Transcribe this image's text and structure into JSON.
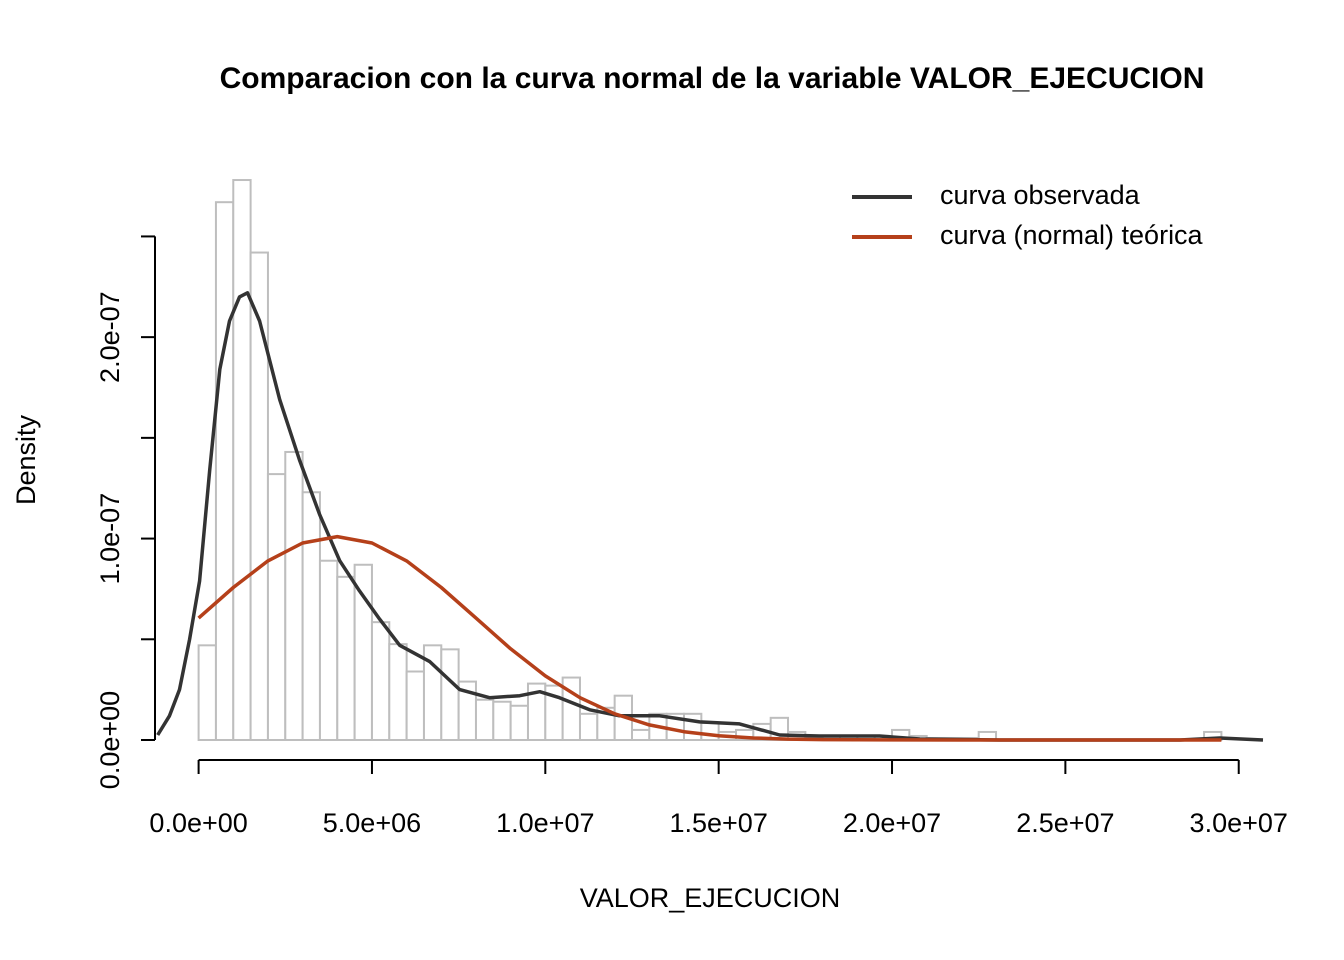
{
  "chart_data": {
    "type": "histogram",
    "title": "Comparacion con la curva normal de la variable VALOR_EJECUCION",
    "x_label": "VALOR_EJECUCION",
    "y_label": "Density",
    "bins": [
      0,
      500000.0,
      1000000.0,
      1500000.0,
      2000000.0,
      2500000.0,
      3000000.0,
      3500000.0,
      4000000.0,
      4500000.0,
      5000000.0,
      5500000.0,
      6000000.0,
      6500000.0,
      7000000.0,
      7500000.0,
      8000000.0,
      8500000.0,
      9000000.0,
      9500000.0,
      10000000.0,
      10500000.0,
      11000000.0,
      11500000.0,
      12000000.0,
      12500000.0,
      13000000.0,
      13500000.0,
      14000000.0,
      14500000.0,
      15000000.0,
      15500000.0,
      16000000.0,
      16500000.0,
      17000000.0,
      17500000.0,
      18000000.0,
      18500000.0,
      19000000.0,
      19500000.0,
      20000000.0,
      20500000.0,
      21000000.0,
      21500000.0,
      22000000.0,
      22500000.0,
      23000000.0,
      23500000.0,
      24000000.0,
      24500000.0,
      25000000.0,
      25500000.0,
      26000000.0,
      26500000.0,
      27000000.0,
      27500000.0,
      28000000.0,
      28500000.0,
      29000000.0,
      29500000.0,
      30000000.0
    ],
    "values": [
      4.7e-08,
      2.67e-07,
      2.78e-07,
      2.42e-07,
      1.32e-07,
      1.43e-07,
      1.23e-07,
      8.9e-08,
      8.1e-08,
      8.7e-08,
      5.85e-08,
      4.76e-08,
      3.4e-08,
      4.7e-08,
      4.5e-08,
      2.9e-08,
      2e-08,
      1.9e-08,
      1.7e-08,
      2.8e-08,
      2.7e-08,
      3.1e-08,
      1.3e-08,
      1.6e-08,
      2.2e-08,
      5e-09,
      1.3e-08,
      1.3e-08,
      1.3e-08,
      8.5e-09,
      4e-09,
      5e-09,
      8e-09,
      1.1e-08,
      4e-09,
      1e-09,
      2e-09,
      2e-09,
      5e-10,
      2e-09,
      5e-09,
      2e-09,
      1e-09,
      1e-09,
      1e-09,
      4e-09,
      0,
      0,
      0,
      0,
      0,
      0,
      0,
      0,
      0,
      0,
      0,
      0,
      4e-09,
      0
    ],
    "bar_color": "#bebebe",
    "lines": [
      {
        "name": "curva observada",
        "color": "#333333",
        "x": [
          -1180000.0,
          -840000.0,
          -550000.0,
          -260000.0,
          30000.0,
          320000.0,
          610000.0,
          890000.0,
          1180000.0,
          1410000.0,
          1760000.0,
          2340000.0,
          2910000.0,
          3490000.0,
          4070000.0,
          4640000.0,
          5220000.0,
          5800000.0,
          6660000.0,
          7530000.0,
          8390000.0,
          9260000.0,
          9840000.0,
          10410000.0,
          11280000.0,
          12140000.0,
          13300000.0,
          14450000.0,
          15600000.0,
          16760000.0,
          17900000.0,
          19640000.0,
          20800000.0,
          23100000.0,
          28300000.0,
          29450000.0,
          30700000.0
        ],
        "values": [
          2.5e-09,
          1.2e-08,
          2.5e-08,
          5e-08,
          7.9e-08,
          1.34e-07,
          1.84e-07,
          2.08e-07,
          2.2e-07,
          2.22e-07,
          2.08e-07,
          1.69e-07,
          1.39e-07,
          1.12e-07,
          8.9e-08,
          7.4e-08,
          6e-08,
          4.7e-08,
          3.9e-08,
          2.5e-08,
          2.1e-08,
          2.2e-08,
          2.4e-08,
          2.1e-08,
          1.5e-08,
          1.2e-08,
          1.2e-08,
          9e-09,
          8e-09,
          2.5e-09,
          2e-09,
          2e-09,
          5e-10,
          0,
          0,
          1e-09,
          0
        ]
      },
      {
        "name": "curva (normal) teórica",
        "color": "#b5401a",
        "x": [
          0,
          1000000.0,
          2000000.0,
          3000000.0,
          4000000.0,
          5000000.0,
          6000000.0,
          7000000.0,
          8000000.0,
          9000000.0,
          10000000.0,
          11000000.0,
          12000000.0,
          13000000.0,
          14000000.0,
          15000000.0,
          16000000.0,
          17000000.0,
          18000000.0,
          20000000.0,
          22000000.0,
          25000000.0,
          29500000.0
        ],
        "values": [
          6.05e-08,
          7.57e-08,
          8.89e-08,
          9.78e-08,
          1.01e-07,
          9.78e-08,
          8.89e-08,
          7.57e-08,
          6.05e-08,
          4.53e-08,
          3.18e-08,
          2.1e-08,
          1.3e-08,
          7.5e-09,
          4.1e-09,
          2.1e-09,
          1e-09,
          4.5e-10,
          1.9e-10,
          3e-11,
          0,
          0,
          0
        ]
      }
    ],
    "legend": "topright",
    "xlim": [
      -1200000.0,
      30700000.0
    ],
    "ylim": [
      0,
      2.8e-07
    ],
    "xticks": [
      {
        "value": 0,
        "label": "0.0e+00"
      },
      {
        "value": 5000000.0,
        "label": "5.0e+06"
      },
      {
        "value": 10000000.0,
        "label": "1.0e+07"
      },
      {
        "value": 15000000.0,
        "label": "1.5e+07"
      },
      {
        "value": 20000000.0,
        "label": "2.0e+07"
      },
      {
        "value": 25000000.0,
        "label": "2.5e+07"
      },
      {
        "value": 30000000.0,
        "label": "3.0e+07"
      }
    ],
    "yticks": [
      {
        "value": 0,
        "label": "0.0e+00"
      },
      {
        "value": 5e-08,
        "label": null
      },
      {
        "value": 1e-07,
        "label": "1.0e-07"
      },
      {
        "value": 1.5e-07,
        "label": null
      },
      {
        "value": 2e-07,
        "label": "2.0e-07"
      },
      {
        "value": 2.5e-07,
        "label": null
      }
    ]
  }
}
